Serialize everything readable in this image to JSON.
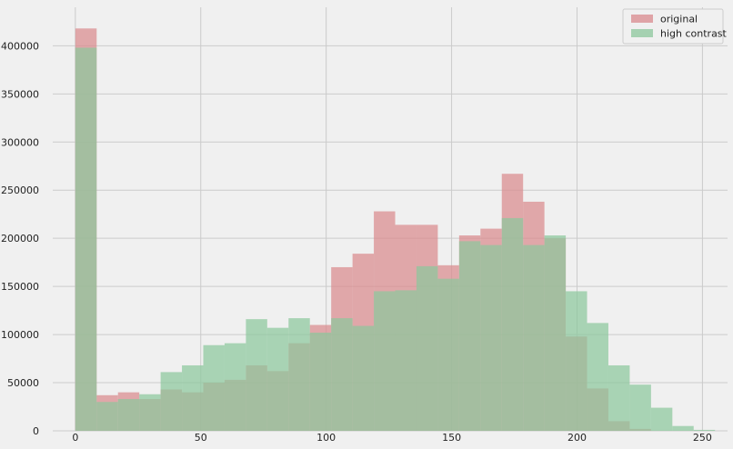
{
  "chart_data": {
    "type": "bar",
    "title": "",
    "xlabel": "",
    "ylabel": "",
    "xlim": [
      -9,
      260
    ],
    "ylim": [
      0,
      440000
    ],
    "xticks": [
      0,
      50,
      100,
      150,
      200,
      250
    ],
    "yticks": [
      0,
      50000,
      100000,
      150000,
      200000,
      250000,
      300000,
      350000,
      400000
    ],
    "grid": true,
    "legend_position": "top-right",
    "series": [
      {
        "name": "original",
        "color": "#d98a8e",
        "bin_edges": [
          0,
          8.5,
          17,
          25.5,
          34,
          42.5,
          51,
          59.5,
          68,
          76.5,
          85,
          93.5,
          102,
          110.5,
          119,
          127.5,
          136,
          144.5,
          153,
          161.5,
          170,
          178.5,
          187,
          195.5,
          204,
          212.5,
          221,
          229.5,
          238,
          246.5,
          255
        ],
        "values": [
          418000,
          37000,
          40000,
          33000,
          43000,
          40000,
          50000,
          53000,
          68000,
          62000,
          91000,
          110000,
          170000,
          184000,
          228000,
          214000,
          214000,
          172000,
          203000,
          210000,
          267000,
          238000,
          200000,
          98000,
          44000,
          10000,
          2000,
          0,
          0,
          0
        ]
      },
      {
        "name": "high contrast",
        "color": "#8cc79c",
        "bin_edges": [
          0,
          8.5,
          17,
          25.5,
          34,
          42.5,
          51,
          59.5,
          68,
          76.5,
          85,
          93.5,
          102,
          110.5,
          119,
          127.5,
          136,
          144.5,
          153,
          161.5,
          170,
          178.5,
          187,
          195.5,
          204,
          212.5,
          221,
          229.5,
          238,
          246.5,
          255
        ],
        "values": [
          398000,
          30000,
          33000,
          38000,
          61000,
          68000,
          89000,
          91000,
          116000,
          107000,
          117000,
          102000,
          117000,
          109000,
          145000,
          146000,
          171000,
          158000,
          197000,
          193000,
          221000,
          193000,
          203000,
          145000,
          112000,
          68000,
          48000,
          24000,
          5000,
          1000
        ]
      }
    ]
  }
}
